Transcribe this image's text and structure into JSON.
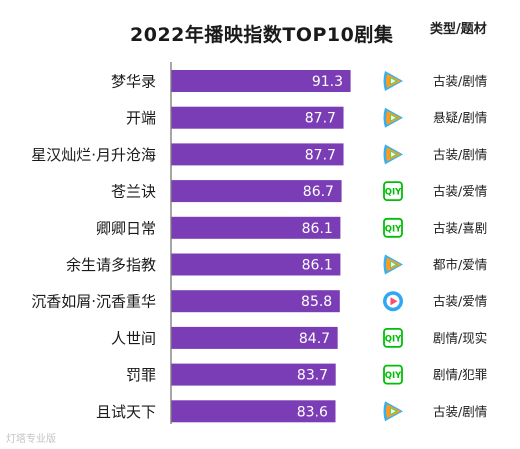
{
  "chart_data": {
    "type": "bar",
    "orientation": "horizontal",
    "title": "2022年播映指数TOP10剧集",
    "genre_header": "类型/题材",
    "categories": [
      "梦华录",
      "开端",
      "星汉灿烂·月升沧海",
      "苍兰诀",
      "卿卿日常",
      "余生请多指教",
      "沉香如屑·沉香重华",
      "人世间",
      "罚罪",
      "且试天下"
    ],
    "values": [
      91.3,
      87.7,
      87.7,
      86.7,
      86.1,
      86.1,
      85.8,
      84.7,
      83.7,
      83.6
    ],
    "value_labels": [
      "91.3",
      "87.7",
      "87.7",
      "86.7",
      "86.1",
      "86.1",
      "85.8",
      "84.7",
      "83.7",
      "83.6"
    ],
    "platforms": [
      "tencent-video-icon",
      "tencent-video-icon",
      "tencent-video-icon",
      "iqiyi-icon",
      "iqiyi-icon",
      "tencent-video-icon",
      "youku-icon",
      "iqiyi-icon",
      "iqiyi-icon",
      "tencent-video-icon"
    ],
    "genres": [
      "古装/剧情",
      "悬疑/剧情",
      "古装/剧情",
      "古装/爱情",
      "古装/喜剧",
      "都市/爱情",
      "古装/爱情",
      "剧情/现实",
      "剧情/犯罪",
      "古装/剧情"
    ],
    "bar_color": "#7b3db5",
    "axis_line_color": "#6b6b6b",
    "gridlines": false,
    "legend": "none"
  },
  "watermark": "灯塔专业版"
}
